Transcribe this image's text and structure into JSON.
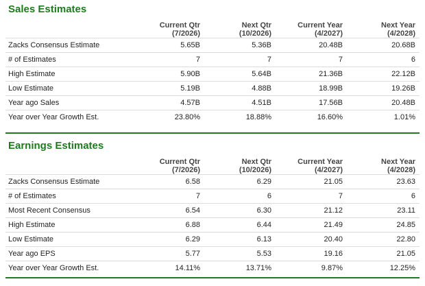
{
  "sales": {
    "title": "Sales Estimates",
    "columns": [
      {
        "label": "Current Qtr",
        "period": "(7/2026)"
      },
      {
        "label": "Next Qtr",
        "period": "(10/2026)"
      },
      {
        "label": "Current Year",
        "period": "(4/2027)"
      },
      {
        "label": "Next Year",
        "period": "(4/2028)"
      }
    ],
    "rows": [
      {
        "label": "Zacks Consensus Estimate",
        "values": [
          "5.65B",
          "5.36B",
          "20.48B",
          "20.68B"
        ]
      },
      {
        "label": "# of Estimates",
        "values": [
          "7",
          "7",
          "7",
          "6"
        ]
      },
      {
        "label": "High Estimate",
        "values": [
          "5.90B",
          "5.64B",
          "21.36B",
          "22.12B"
        ]
      },
      {
        "label": "Low Estimate",
        "values": [
          "5.19B",
          "4.88B",
          "18.99B",
          "19.26B"
        ]
      },
      {
        "label": "Year ago Sales",
        "values": [
          "4.57B",
          "4.51B",
          "17.56B",
          "20.48B"
        ]
      },
      {
        "label": "Year over Year Growth Est.",
        "values": [
          "23.80%",
          "18.88%",
          "16.60%",
          "1.01%"
        ]
      }
    ]
  },
  "earnings": {
    "title": "Earnings Estimates",
    "columns": [
      {
        "label": "Current Qtr",
        "period": "(7/2026)"
      },
      {
        "label": "Next Qtr",
        "period": "(10/2026)"
      },
      {
        "label": "Current Year",
        "period": "(4/2027)"
      },
      {
        "label": "Next Year",
        "period": "(4/2028)"
      }
    ],
    "rows": [
      {
        "label": "Zacks Consensus Estimate",
        "values": [
          "6.58",
          "6.29",
          "21.05",
          "23.63"
        ]
      },
      {
        "label": "# of Estimates",
        "values": [
          "7",
          "6",
          "7",
          "6"
        ]
      },
      {
        "label": "Most Recent Consensus",
        "values": [
          "6.54",
          "6.30",
          "21.12",
          "23.11"
        ]
      },
      {
        "label": "High Estimate",
        "values": [
          "6.88",
          "6.44",
          "21.49",
          "24.85"
        ]
      },
      {
        "label": "Low Estimate",
        "values": [
          "6.29",
          "6.13",
          "20.40",
          "22.80"
        ]
      },
      {
        "label": "Year ago EPS",
        "values": [
          "5.77",
          "5.53",
          "19.16",
          "21.05"
        ]
      },
      {
        "label": "Year over Year Growth Est.",
        "values": [
          "14.11%",
          "13.71%",
          "9.87%",
          "12.25%"
        ]
      }
    ]
  },
  "colors": {
    "accent": "#1f7a1f",
    "row_border": "#dcdcdc"
  }
}
